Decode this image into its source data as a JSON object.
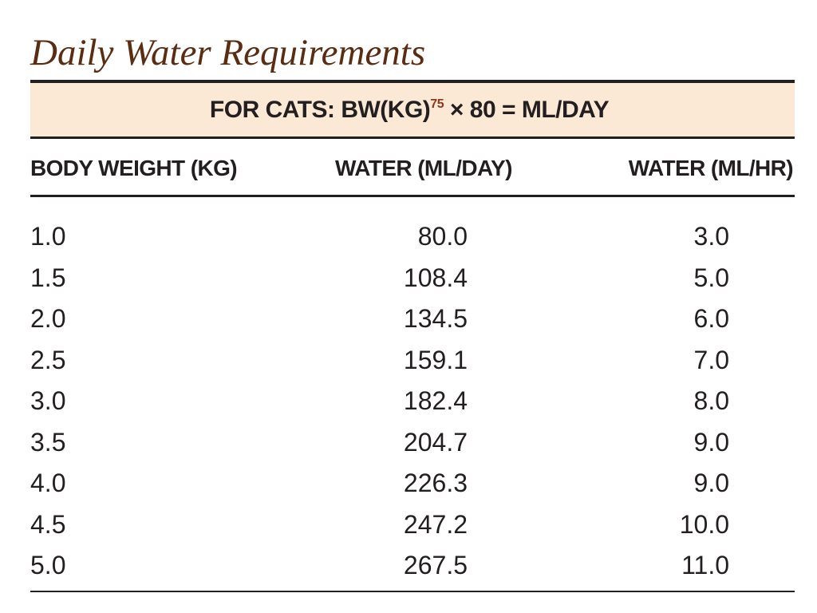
{
  "title": "Daily Water Requirements",
  "formula": {
    "prefix": "FOR CATS: BW(KG)",
    "exponent": "75",
    "suffix": " × 80 = ML/DAY"
  },
  "columns": [
    "BODY WEIGHT (KG)",
    "WATER (ML/DAY)",
    "WATER (ML/HR)"
  ],
  "rows": [
    [
      "1.0",
      "80.0",
      "3.0"
    ],
    [
      "1.5",
      "108.4",
      "5.0"
    ],
    [
      "2.0",
      "134.5",
      "6.0"
    ],
    [
      "2.5",
      "159.1",
      "7.0"
    ],
    [
      "3.0",
      "182.4",
      "8.0"
    ],
    [
      "3.5",
      "204.7",
      "9.0"
    ],
    [
      "4.0",
      "226.3",
      "9.0"
    ],
    [
      "4.5",
      "247.2",
      "10.0"
    ],
    [
      "5.0",
      "267.5",
      "11.0"
    ]
  ],
  "colors": {
    "title": "#5a2d12",
    "band": "#fbe9d6",
    "text": "#231f20",
    "exponent": "#8a3a1c"
  }
}
